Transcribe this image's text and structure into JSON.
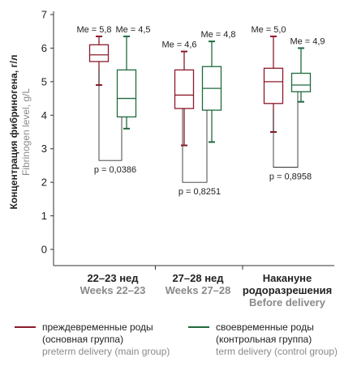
{
  "chart_data": {
    "type": "box",
    "ylabel": "Концентрация фибриногена, г/л",
    "ylabel_en": "Fibrinogen level, g/L",
    "ylim": [
      0,
      7
    ],
    "yticks": [
      "0",
      "1",
      "2",
      "3",
      "4",
      "5",
      "6",
      "7"
    ],
    "groups": [
      {
        "label": "22–23 нед",
        "label_en": "Weeks 22–23",
        "p_text": "p = 0,0386",
        "p_line_y": 2.65,
        "boxes": [
          {
            "series": 0,
            "median_label": "Me = 5,8",
            "min": 4.9,
            "q1": 5.6,
            "median": 5.8,
            "q3": 6.1,
            "max": 6.35
          },
          {
            "series": 1,
            "median_label": "Me = 4,5",
            "min": 3.6,
            "q1": 3.95,
            "median": 4.5,
            "q3": 5.35,
            "max": 6.35
          }
        ]
      },
      {
        "label": "27–28 нед",
        "label_en": "Weeks 27–28",
        "p_text": "p = 0,8251",
        "p_line_y": 2.0,
        "boxes": [
          {
            "series": 0,
            "median_label": "Me = 4,6",
            "min": 3.1,
            "q1": 4.2,
            "median": 4.6,
            "q3": 5.35,
            "max": 5.9
          },
          {
            "series": 1,
            "median_label": "Me = 4,8",
            "min": 3.2,
            "q1": 4.15,
            "median": 4.8,
            "q3": 5.45,
            "max": 6.2
          }
        ]
      },
      {
        "label": "Накануне родоразрешения",
        "label_en": "Before delivery",
        "p_text": "p = 0,8958",
        "p_line_y": 2.45,
        "boxes": [
          {
            "series": 0,
            "median_label": "Me = 5,0",
            "min": 3.5,
            "q1": 4.35,
            "median": 5.0,
            "q3": 5.4,
            "max": 6.35
          },
          {
            "series": 1,
            "median_label": "Me = 4,9",
            "min": 4.4,
            "q1": 4.7,
            "median": 4.9,
            "q3": 5.25,
            "max": 6.0
          }
        ]
      }
    ],
    "series": [
      {
        "name": "преждевременные роды (основная группа)",
        "name_line1": "преждевременные роды",
        "name_line2": "(основная группа)",
        "name_en": "preterm delivery (main group)",
        "color": "#8b1a2b"
      },
      {
        "name": "своевременные роды (контрольная группа)",
        "name_line1": "своевременные роды",
        "name_line2": "(контрольная группа)",
        "name_en": "term delivery (control group)",
        "color": "#1f6b3e"
      }
    ],
    "legend_position": "bottom",
    "grid": false
  }
}
